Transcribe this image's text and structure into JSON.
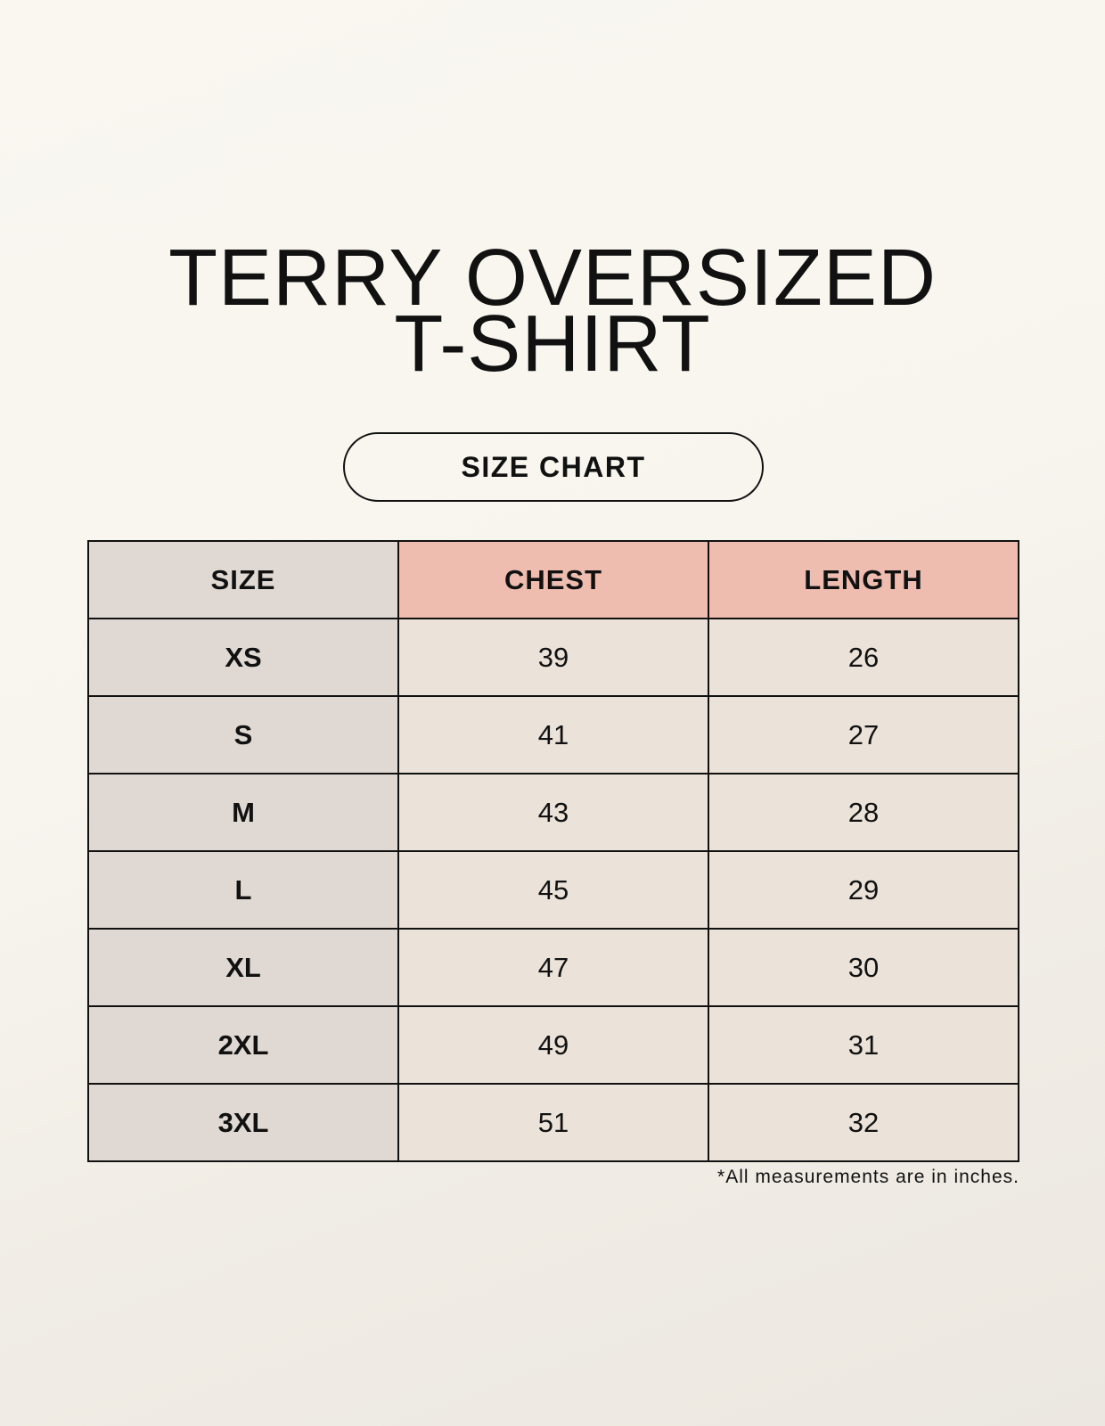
{
  "title_line1": "TERRY OVERSIZED",
  "title_line2": "T-SHIRT",
  "subtitle": "SIZE CHART",
  "table": {
    "headers": [
      "SIZE",
      "CHEST",
      "LENGTH"
    ],
    "rows": [
      [
        "XS",
        "39",
        "26"
      ],
      [
        "S",
        "41",
        "27"
      ],
      [
        "M",
        "43",
        "28"
      ],
      [
        "L",
        "45",
        "29"
      ],
      [
        "XL",
        "47",
        "30"
      ],
      [
        "2XL",
        "49",
        "31"
      ],
      [
        "3XL",
        "51",
        "32"
      ]
    ]
  },
  "footnote": "*All measurements are in inches.",
  "colors": {
    "size_column": "#e0d8d2",
    "header_accent": "#efbdb0",
    "cell": "#ebe3d9"
  }
}
